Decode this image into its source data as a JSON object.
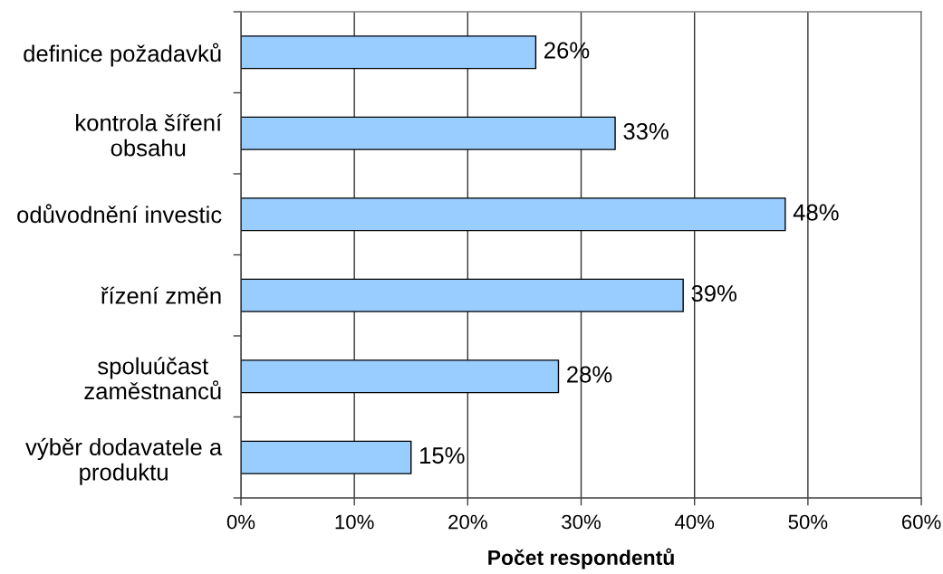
{
  "chart_data": {
    "type": "bar",
    "orientation": "horizontal",
    "categories": [
      "definice požadavků",
      "kontrola šíření\nobsahu",
      "odůvodnění investic",
      "řízení změn",
      "spoluúčast\nzaměstnanců",
      "výběr dodavatele a\nproduktu"
    ],
    "values": [
      26,
      33,
      48,
      39,
      28,
      15
    ],
    "value_labels": [
      "26%",
      "33%",
      "48%",
      "39%",
      "28%",
      "15%"
    ],
    "color": "#99ccff",
    "xlabel": "Počet respondentů",
    "xlim": [
      0,
      60
    ],
    "xticks": [
      {
        "value": 0,
        "label": "0%"
      },
      {
        "value": 10,
        "label": "10%"
      },
      {
        "value": 20,
        "label": "20%"
      },
      {
        "value": 30,
        "label": "30%"
      },
      {
        "value": 40,
        "label": "40%"
      },
      {
        "value": 50,
        "label": "50%"
      },
      {
        "value": 60,
        "label": "60%"
      }
    ],
    "grid": "x"
  }
}
